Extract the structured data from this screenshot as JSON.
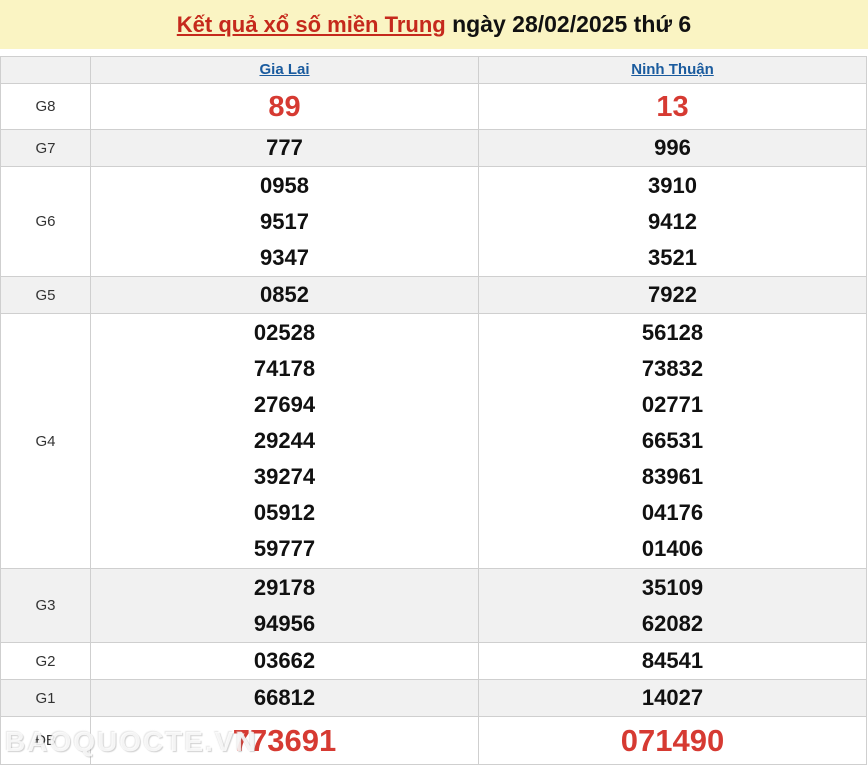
{
  "header": {
    "title_link": "Kết quả xổ số miền Trung",
    "title_rest": " ngày 28/02/2025 thứ 6"
  },
  "table": {
    "columns": [
      "Gia Lai",
      "Ninh Thuận"
    ],
    "rows": [
      {
        "label": "G8",
        "gia_lai": [
          "89"
        ],
        "ninh_thuan": [
          "13"
        ]
      },
      {
        "label": "G7",
        "gia_lai": [
          "777"
        ],
        "ninh_thuan": [
          "996"
        ]
      },
      {
        "label": "G6",
        "gia_lai": [
          "0958",
          "9517",
          "9347"
        ],
        "ninh_thuan": [
          "3910",
          "9412",
          "3521"
        ]
      },
      {
        "label": "G5",
        "gia_lai": [
          "0852"
        ],
        "ninh_thuan": [
          "7922"
        ]
      },
      {
        "label": "G4",
        "gia_lai": [
          "02528",
          "74178",
          "27694",
          "29244",
          "39274",
          "05912",
          "59777"
        ],
        "ninh_thuan": [
          "56128",
          "73832",
          "02771",
          "66531",
          "83961",
          "04176",
          "01406"
        ]
      },
      {
        "label": "G3",
        "gia_lai": [
          "29178",
          "94956"
        ],
        "ninh_thuan": [
          "35109",
          "62082"
        ]
      },
      {
        "label": "G2",
        "gia_lai": [
          "03662"
        ],
        "ninh_thuan": [
          "84541"
        ]
      },
      {
        "label": "G1",
        "gia_lai": [
          "66812"
        ],
        "ninh_thuan": [
          "14027"
        ]
      },
      {
        "label": "ĐB",
        "gia_lai": [
          "773691"
        ],
        "ninh_thuan": [
          "071490"
        ]
      }
    ]
  },
  "watermark": "BAOQUOCTE.VN",
  "colors": {
    "band_yellow": "#faf4c3",
    "title_red": "#c5291c",
    "number_red": "#d63a32",
    "link_blue": "#1a5b9e",
    "row_shade_gray": "#f1f1f1",
    "border_gray": "#cfcfcf"
  }
}
